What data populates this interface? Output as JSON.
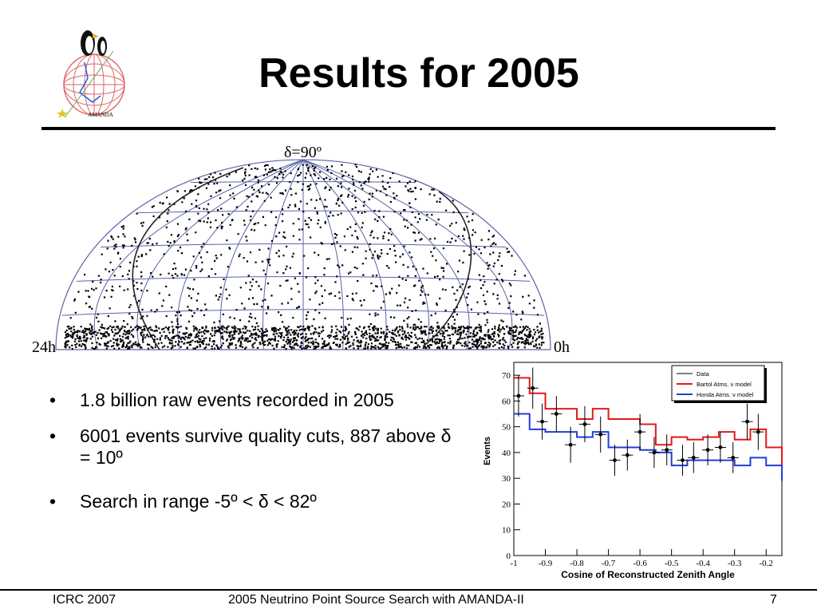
{
  "slide": {
    "title": "Results for 2005",
    "logo_text": "AMANDA"
  },
  "skymap": {
    "top_label": "δ=90º",
    "left_label": "24h",
    "right_label": "0h"
  },
  "bullets": [
    {
      "text": "1.8 billion raw events recorded in 2005"
    },
    {
      "text": "6001 events survive quality cuts, 887 above δ = 10º"
    },
    {
      "text": "Search in range -5º < δ < 82º"
    }
  ],
  "footer": {
    "left": "ICRC 2007",
    "center": "2005 Neutrino Point Source Search with AMANDA-II",
    "right": "7"
  },
  "chart_data": {
    "type": "line",
    "xlabel": "Cosine of Reconstructed Zenith Angle",
    "ylabel": "Events",
    "xlim": [
      -1,
      -0.15
    ],
    "ylim": [
      0,
      75
    ],
    "xticks": [
      -1,
      -0.9,
      -0.8,
      -0.7,
      -0.6,
      -0.5,
      -0.4,
      -0.3,
      -0.2
    ],
    "xtick_labels": [
      "-1",
      "-0.9",
      "-0.8",
      "-0.7",
      "-0.6",
      "-0.5",
      "-0.4",
      "-0.3",
      "-0.2"
    ],
    "yticks": [
      0,
      10,
      20,
      30,
      40,
      50,
      60,
      70
    ],
    "ytick_labels": [
      "0",
      "10",
      "20",
      "30",
      "40",
      "50",
      "60",
      "70"
    ],
    "legend": {
      "position": "top-right",
      "entries": [
        {
          "name": "Data",
          "color": "#000000"
        },
        {
          "name": "Bartol Atms. ν model",
          "color": "#e31a1c"
        },
        {
          "name": "Honda Atms. ν model",
          "color": "#1f3fd6"
        }
      ]
    },
    "bin_edges": [
      -1.0,
      -0.95,
      -0.9,
      -0.85,
      -0.8,
      -0.75,
      -0.7,
      -0.65,
      -0.6,
      -0.55,
      -0.5,
      -0.45,
      -0.4,
      -0.35,
      -0.3,
      -0.25,
      -0.2,
      -0.15
    ],
    "series": [
      {
        "name": "Data",
        "color": "#000000",
        "values": [
          62,
          65,
          52,
          55,
          43,
          51,
          47,
          37,
          39,
          48,
          40,
          41,
          37,
          38,
          41,
          42,
          38,
          52,
          48
        ],
        "x": [
          -0.985,
          -0.94,
          -0.91,
          -0.865,
          -0.82,
          -0.775,
          -0.725,
          -0.68,
          -0.64,
          -0.6,
          -0.555,
          -0.515,
          -0.465,
          -0.43,
          -0.385,
          -0.345,
          -0.305,
          -0.26,
          -0.225
        ],
        "errors": [
          8,
          8,
          7,
          7,
          7,
          7,
          7,
          6,
          6,
          7,
          6,
          6,
          6,
          6,
          6,
          6,
          6,
          7,
          7
        ]
      },
      {
        "name": "Bartol Atms. ν model",
        "color": "#e31a1c",
        "values": [
          69,
          63,
          57,
          57,
          53,
          57,
          53,
          53,
          51,
          43,
          46,
          45,
          46,
          48,
          45,
          49,
          42,
          35
        ]
      },
      {
        "name": "Honda Atms. ν model",
        "color": "#1f3fd6",
        "values": [
          55,
          49,
          48,
          48,
          46,
          48,
          42,
          42,
          41,
          40,
          35,
          37,
          37,
          37,
          35,
          38,
          35,
          29
        ]
      }
    ]
  }
}
